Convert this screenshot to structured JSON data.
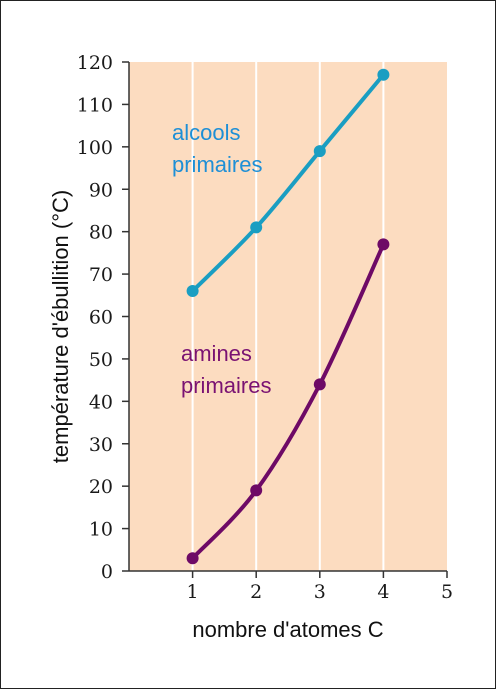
{
  "chart_data": {
    "type": "line",
    "title": "",
    "xlabel": "nombre d'atomes C",
    "ylabel": "température d'ébullition  (°C)",
    "xlim": [
      0,
      5
    ],
    "ylim": [
      0,
      120
    ],
    "x_ticks": [
      1,
      2,
      3,
      4,
      5
    ],
    "y_ticks": [
      0,
      10,
      20,
      30,
      40,
      50,
      60,
      70,
      80,
      90,
      100,
      110,
      120
    ],
    "grid": true,
    "background_color": "#fcdcc0",
    "grid_color": "#ffffff",
    "series": [
      {
        "name_lines": [
          "alcools",
          "primaires"
        ],
        "color": "#1a9ec2",
        "label_color": "#1e8fd6",
        "x": [
          1,
          2,
          3,
          4
        ],
        "y": [
          66,
          81,
          99,
          117
        ]
      },
      {
        "name_lines": [
          "amines",
          "primaires"
        ],
        "color": "#6e0a66",
        "label_color": "#7a1272",
        "x": [
          1,
          2,
          3,
          4
        ],
        "y": [
          3,
          19,
          44,
          77
        ]
      }
    ]
  }
}
